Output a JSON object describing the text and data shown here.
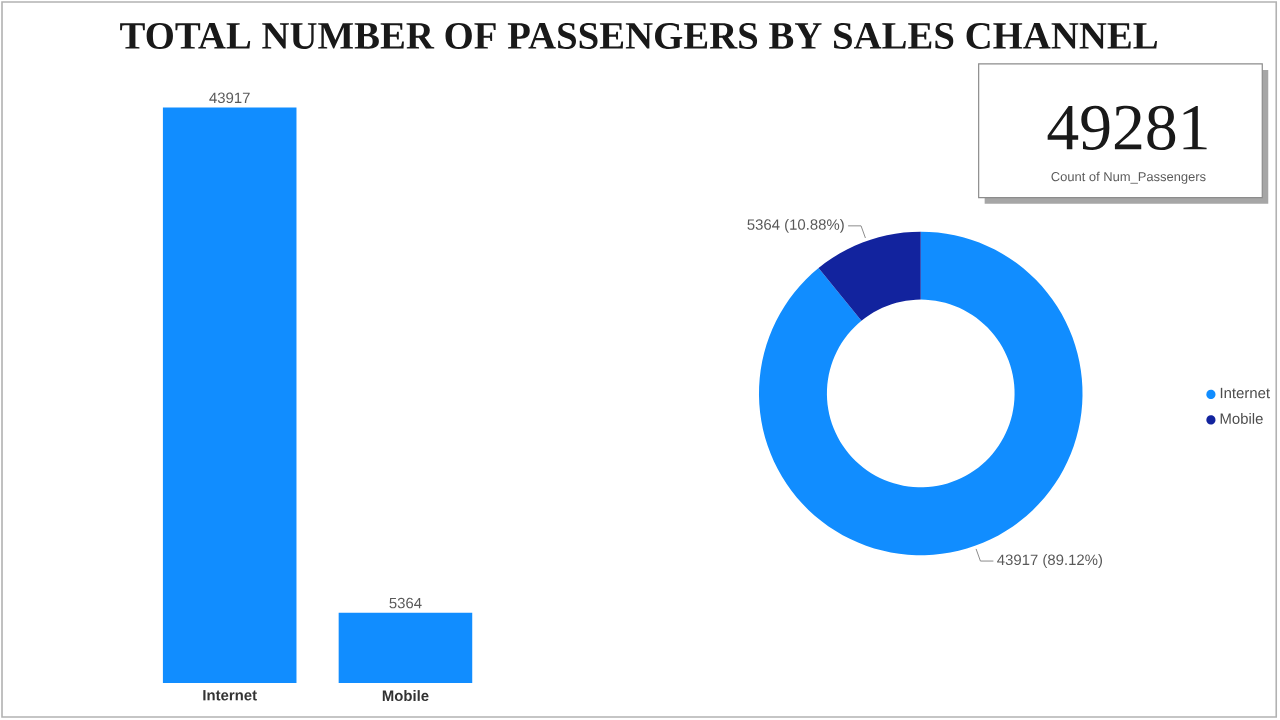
{
  "chart_data": [
    {
      "type": "bar",
      "title": "TOTAL NUMBER OF PASSENGERS BY SALES CHANNEL",
      "categories": [
        "Internet",
        "Mobile"
      ],
      "values": [
        43917,
        5364
      ],
      "color": "#118dff",
      "data_labels": true
    },
    {
      "type": "donut",
      "categories": [
        "Internet",
        "Mobile"
      ],
      "values": [
        43917,
        5364
      ],
      "colors": [
        "#118dff",
        "#12239e"
      ],
      "value_labels": [
        "43917 (89.12%)",
        "5364 (10.88%)"
      ],
      "legend": "right"
    },
    {
      "type": "other",
      "annotations": [
        "49281",
        "Count of Num_Passengers"
      ]
    }
  ]
}
